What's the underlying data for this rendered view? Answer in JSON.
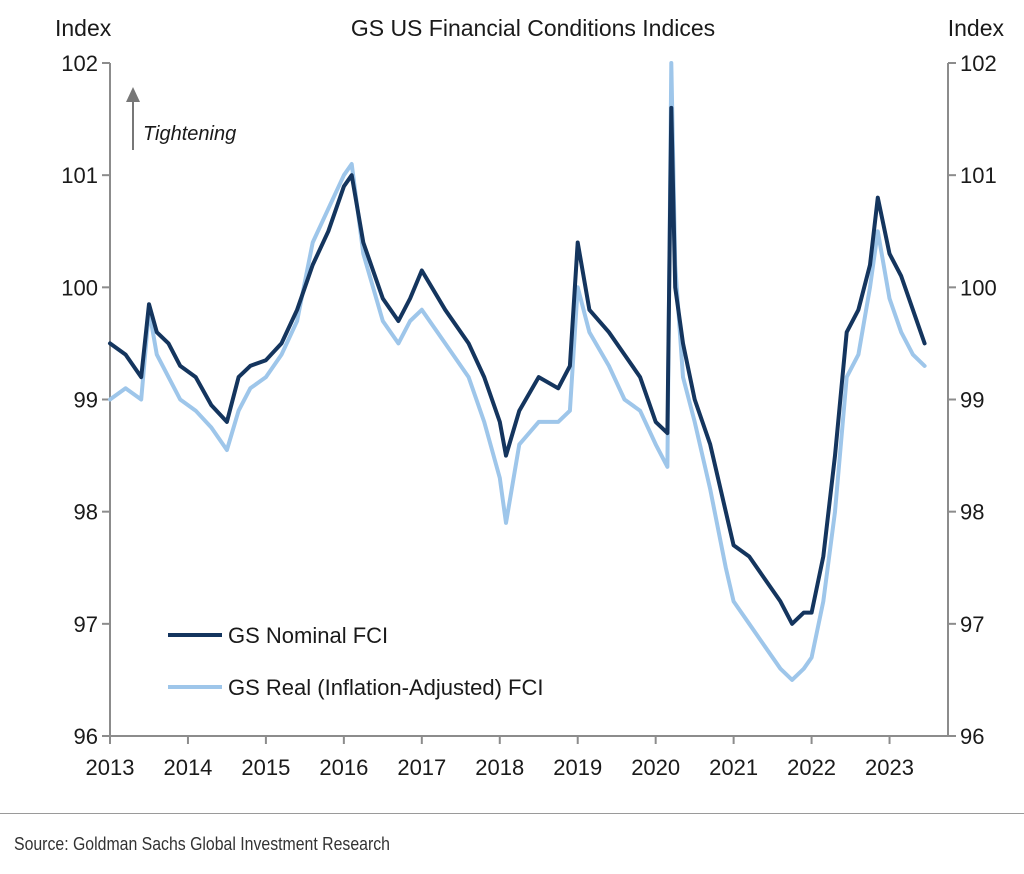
{
  "chart_data": {
    "type": "line",
    "title": "GS US Financial Conditions Indices",
    "ylabel_left": "Index",
    "ylabel_right": "Index",
    "ylim": [
      96,
      102
    ],
    "yticks": [
      96,
      97,
      98,
      99,
      100,
      101,
      102
    ],
    "xlim": [
      2013,
      2023.75
    ],
    "xticks": [
      "2013",
      "2014",
      "2015",
      "2016",
      "2017",
      "2018",
      "2019",
      "2020",
      "2021",
      "2022",
      "2023"
    ],
    "annotation": "Tightening",
    "grid": false,
    "legend_position": "bottom-left",
    "series": [
      {
        "name": "GS Nominal FCI",
        "color": "#14355e",
        "x": [
          2013.0,
          2013.2,
          2013.4,
          2013.5,
          2013.6,
          2013.75,
          2013.9,
          2014.1,
          2014.3,
          2014.5,
          2014.65,
          2014.8,
          2015.0,
          2015.2,
          2015.4,
          2015.6,
          2015.8,
          2016.0,
          2016.1,
          2016.25,
          2016.5,
          2016.7,
          2016.85,
          2017.0,
          2017.3,
          2017.6,
          2017.8,
          2018.0,
          2018.08,
          2018.25,
          2018.5,
          2018.75,
          2018.9,
          2019.0,
          2019.15,
          2019.4,
          2019.6,
          2019.8,
          2020.0,
          2020.15,
          2020.2,
          2020.25,
          2020.35,
          2020.5,
          2020.7,
          2020.9,
          2021.0,
          2021.2,
          2021.4,
          2021.6,
          2021.75,
          2021.9,
          2022.0,
          2022.15,
          2022.3,
          2022.45,
          2022.6,
          2022.75,
          2022.85,
          2023.0,
          2023.15,
          2023.3,
          2023.45
        ],
        "y": [
          99.5,
          99.4,
          99.2,
          99.85,
          99.6,
          99.5,
          99.3,
          99.2,
          98.95,
          98.8,
          99.2,
          99.3,
          99.35,
          99.5,
          99.8,
          100.2,
          100.5,
          100.9,
          101.0,
          100.4,
          99.9,
          99.7,
          99.9,
          100.15,
          99.8,
          99.5,
          99.2,
          98.8,
          98.5,
          98.9,
          99.2,
          99.1,
          99.3,
          100.4,
          99.8,
          99.6,
          99.4,
          99.2,
          98.8,
          98.7,
          101.6,
          100.0,
          99.5,
          99.0,
          98.6,
          98.0,
          97.7,
          97.6,
          97.4,
          97.2,
          97.0,
          97.1,
          97.1,
          97.6,
          98.5,
          99.6,
          99.8,
          100.2,
          100.8,
          100.3,
          100.1,
          99.8,
          99.5
        ]
      },
      {
        "name": "GS Real (Inflation-Adjusted) FCI",
        "color": "#9ec6ea",
        "x": [
          2013.0,
          2013.2,
          2013.4,
          2013.5,
          2013.6,
          2013.75,
          2013.9,
          2014.1,
          2014.3,
          2014.5,
          2014.65,
          2014.8,
          2015.0,
          2015.2,
          2015.4,
          2015.6,
          2015.8,
          2016.0,
          2016.1,
          2016.25,
          2016.5,
          2016.7,
          2016.85,
          2017.0,
          2017.3,
          2017.6,
          2017.8,
          2018.0,
          2018.08,
          2018.25,
          2018.5,
          2018.75,
          2018.9,
          2019.0,
          2019.15,
          2019.4,
          2019.6,
          2019.8,
          2020.0,
          2020.15,
          2020.2,
          2020.25,
          2020.35,
          2020.5,
          2020.7,
          2020.9,
          2021.0,
          2021.2,
          2021.4,
          2021.6,
          2021.75,
          2021.9,
          2022.0,
          2022.15,
          2022.3,
          2022.45,
          2022.6,
          2022.75,
          2022.85,
          2023.0,
          2023.15,
          2023.3,
          2023.45
        ],
        "y": [
          99.0,
          99.1,
          99.0,
          99.8,
          99.4,
          99.2,
          99.0,
          98.9,
          98.75,
          98.55,
          98.9,
          99.1,
          99.2,
          99.4,
          99.7,
          100.4,
          100.7,
          101.0,
          101.1,
          100.3,
          99.7,
          99.5,
          99.7,
          99.8,
          99.5,
          99.2,
          98.8,
          98.3,
          97.9,
          98.6,
          98.8,
          98.8,
          98.9,
          100.0,
          99.6,
          99.3,
          99.0,
          98.9,
          98.6,
          98.4,
          102.0,
          100.2,
          99.2,
          98.8,
          98.2,
          97.5,
          97.2,
          97.0,
          96.8,
          96.6,
          96.5,
          96.6,
          96.7,
          97.2,
          98.0,
          99.2,
          99.4,
          100.0,
          100.5,
          99.9,
          99.6,
          99.4,
          99.3
        ]
      }
    ]
  },
  "source": "Source: Goldman Sachs Global Investment Research"
}
